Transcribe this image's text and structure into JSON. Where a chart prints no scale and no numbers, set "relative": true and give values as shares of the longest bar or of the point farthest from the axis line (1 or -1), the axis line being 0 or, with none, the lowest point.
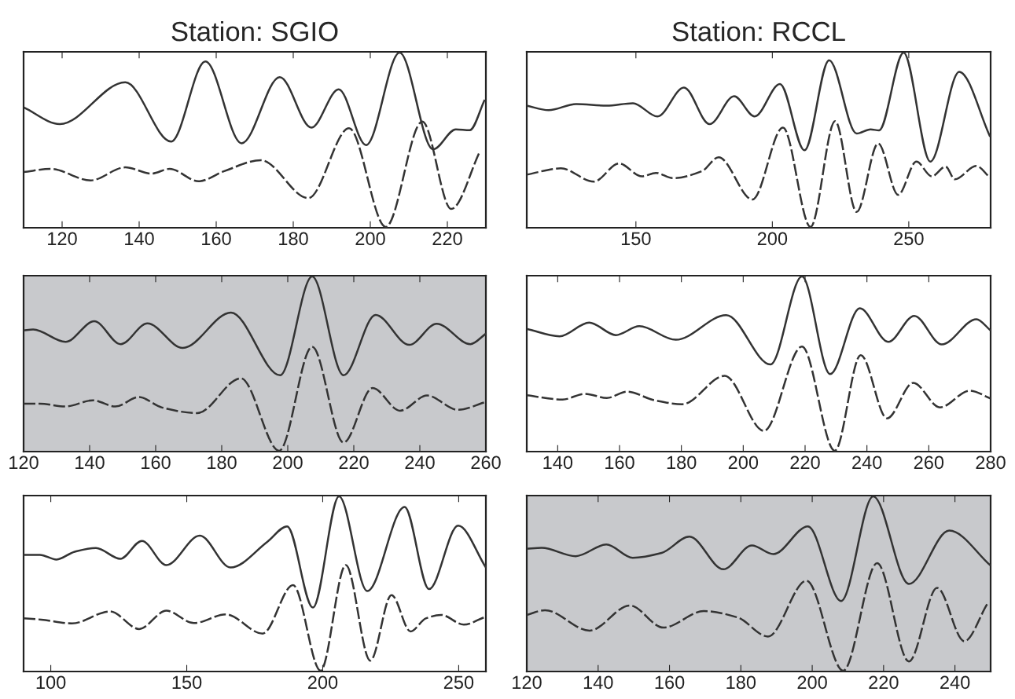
{
  "chart_data": [
    {
      "type": "line",
      "title": "Station: SGIO",
      "relative": true,
      "xlim": [
        110,
        230
      ],
      "xticks": [
        120,
        140,
        160,
        180,
        200,
        220
      ],
      "tick_labels": "x",
      "legend": false,
      "grid": false,
      "marker": "none",
      "series": [
        {
          "color": "#333333",
          "line_style": "solid",
          "x": [
            110.1,
            119.4,
            136.4,
            148.3,
            157.2,
            166.6,
            176.5,
            184.7,
            191.8,
            198.9,
            207.6,
            216.3,
            222.2,
            225.8,
            229.7
          ],
          "values": [
            0.685,
            0.59,
            0.83,
            0.49,
            0.95,
            0.48,
            0.86,
            0.57,
            0.79,
            0.47,
            1.0,
            0.445,
            0.56,
            0.555,
            0.73
          ]
        },
        {
          "color": "#333333",
          "line_style": "dashed",
          "x": [
            110.1,
            117.0,
            127.4,
            136.4,
            143.2,
            147.9,
            155.4,
            162.1,
            171.6,
            183.9,
            194.5,
            204.0,
            213.5,
            221.0,
            228.5
          ],
          "values": [
            0.315,
            0.333,
            0.267,
            0.342,
            0.306,
            0.333,
            0.262,
            0.32,
            0.383,
            0.165,
            0.566,
            0.0,
            0.605,
            0.103,
            0.436
          ]
        }
      ]
    },
    {
      "type": "line",
      "title": "Station: RCCL",
      "relative": true,
      "xlim": [
        110,
        280
      ],
      "xticks": [
        150,
        200,
        250
      ],
      "tick_labels": "x",
      "legend": false,
      "grid": false,
      "marker": "none",
      "series": [
        {
          "color": "#333333",
          "line_style": "solid",
          "x": [
            110,
            118,
            128.1,
            139.3,
            148.9,
            157.9,
            167.6,
            177,
            186,
            193.5,
            202.8,
            211.8,
            220.8,
            230.9,
            236,
            239.1,
            248.1,
            257.9,
            268.5,
            279.8
          ],
          "values": [
            0.696,
            0.67,
            0.705,
            0.696,
            0.71,
            0.634,
            0.8,
            0.59,
            0.75,
            0.634,
            0.82,
            0.44,
            0.957,
            0.536,
            0.56,
            0.554,
            1.0,
            0.375,
            0.89,
            0.518
          ]
        },
        {
          "color": "#333333",
          "line_style": "dashed",
          "x": [
            110,
            122.5,
            134.6,
            143.8,
            152.2,
            157.3,
            163.5,
            174.2,
            180.3,
            192.7,
            203.9,
            214,
            223,
            230.9,
            238.8,
            246.1,
            252.8,
            258.4,
            263.5,
            266.9,
            274.7,
            279.8
          ],
          "values": [
            0.3,
            0.336,
            0.26,
            0.364,
            0.29,
            0.31,
            0.28,
            0.32,
            0.4,
            0.157,
            0.57,
            0.0,
            0.607,
            0.086,
            0.479,
            0.184,
            0.375,
            0.29,
            0.346,
            0.273,
            0.35,
            0.282
          ]
        }
      ]
    },
    {
      "type": "line",
      "relative": true,
      "xlim": [
        120,
        260
      ],
      "xticks": [
        120,
        140,
        160,
        180,
        200,
        220,
        240,
        260
      ],
      "tick_labels": "x",
      "legend": false,
      "grid": false,
      "marker": "none",
      "bands": [
        {
          "axis": "x",
          "from": 120,
          "to": 260,
          "color": "#c8c9cc"
        }
      ],
      "series": [
        {
          "color": "#333333",
          "line_style": "solid",
          "x": [
            120,
            122.9,
            132.7,
            141.4,
            149.4,
            157.5,
            168.2,
            182.8,
            197.7,
            207.4,
            216.9,
            226.6,
            236.8,
            245.1,
            255.3,
            260
          ],
          "values": [
            0.69,
            0.696,
            0.625,
            0.743,
            0.612,
            0.731,
            0.59,
            0.793,
            0.433,
            1.0,
            0.433,
            0.78,
            0.608,
            0.729,
            0.612,
            0.672
          ]
        },
        {
          "color": "#333333",
          "line_style": "dashed",
          "x": [
            120,
            124.9,
            132.7,
            141,
            147.8,
            154.9,
            161.9,
            172.6,
            185.8,
            197.4,
            207.4,
            216.9,
            225.7,
            234,
            242.2,
            251.5,
            260
          ],
          "values": [
            0.27,
            0.27,
            0.254,
            0.289,
            0.254,
            0.308,
            0.248,
            0.216,
            0.416,
            0.0,
            0.597,
            0.047,
            0.36,
            0.23,
            0.317,
            0.235,
            0.28
          ]
        }
      ]
    },
    {
      "type": "line",
      "relative": true,
      "xlim": [
        130,
        280
      ],
      "xticks": [
        140,
        160,
        180,
        200,
        220,
        240,
        260,
        280
      ],
      "tick_labels": "x",
      "legend": false,
      "grid": false,
      "marker": "none",
      "series": [
        {
          "color": "#333333",
          "line_style": "solid",
          "x": [
            130,
            140.6,
            150.2,
            158.8,
            166.4,
            178.2,
            194.5,
            208.8,
            219,
            228.1,
            237.7,
            246.9,
            255.3,
            264.2,
            275.4,
            280
          ],
          "values": [
            0.7,
            0.657,
            0.736,
            0.664,
            0.715,
            0.637,
            0.778,
            0.495,
            1.0,
            0.44,
            0.818,
            0.625,
            0.774,
            0.61,
            0.755,
            0.69
          ]
        },
        {
          "color": "#333333",
          "line_style": "dashed",
          "x": [
            130,
            141.6,
            148.8,
            155.9,
            162.5,
            171.2,
            180.3,
            194,
            206.7,
            219,
            229.6,
            238,
            246.5,
            255,
            263.6,
            273.3,
            280
          ],
          "values": [
            0.318,
            0.294,
            0.327,
            0.303,
            0.339,
            0.29,
            0.267,
            0.43,
            0.114,
            0.598,
            0.0,
            0.549,
            0.186,
            0.39,
            0.249,
            0.345,
            0.3
          ]
        }
      ]
    },
    {
      "type": "line",
      "relative": true,
      "xlim": [
        90,
        260
      ],
      "xticks": [
        100,
        150,
        200,
        250
      ],
      "tick_labels": "x",
      "legend": false,
      "grid": false,
      "marker": "none",
      "series": [
        {
          "color": "#333333",
          "line_style": "solid",
          "x": [
            90,
            96,
            102.1,
            108.8,
            116.6,
            125.6,
            133.5,
            142.5,
            154.8,
            166.1,
            179.6,
            186.9,
            196.4,
            206,
            216.4,
            230.1,
            239.1,
            249.8,
            260
          ],
          "values": [
            0.665,
            0.665,
            0.638,
            0.683,
            0.704,
            0.642,
            0.745,
            0.606,
            0.775,
            0.592,
            0.739,
            0.828,
            0.362,
            1.0,
            0.457,
            0.94,
            0.468,
            0.832,
            0.592
          ]
        },
        {
          "color": "#333333",
          "line_style": "dashed",
          "x": [
            90,
            96.5,
            107.8,
            121.8,
            132.5,
            142.5,
            152.6,
            164.4,
            177.9,
            189.1,
            199.2,
            208.5,
            217.5,
            225.3,
            232.3,
            237.9,
            243.5,
            251.9,
            259.2
          ],
          "values": [
            0.3,
            0.293,
            0.271,
            0.34,
            0.239,
            0.344,
            0.273,
            0.323,
            0.213,
            0.491,
            0.0,
            0.606,
            0.057,
            0.434,
            0.225,
            0.3,
            0.32,
            0.264,
            0.305
          ]
        }
      ]
    },
    {
      "type": "line",
      "relative": true,
      "xlim": [
        120,
        250
      ],
      "xticks": [
        120,
        140,
        160,
        180,
        200,
        220,
        240
      ],
      "tick_labels": "x",
      "legend": false,
      "grid": false,
      "marker": "none",
      "bands": [
        {
          "axis": "x",
          "from": 120,
          "to": 250,
          "color": "#c8c9cc"
        }
      ],
      "series": [
        {
          "color": "#333333",
          "line_style": "solid",
          "x": [
            120,
            124.2,
            133.7,
            142.3,
            149.7,
            157.8,
            165.6,
            175.1,
            183.1,
            189.1,
            198.8,
            208.1,
            217.1,
            227.1,
            238.4,
            250
          ],
          "values": [
            0.7,
            0.705,
            0.657,
            0.724,
            0.648,
            0.676,
            0.769,
            0.582,
            0.719,
            0.669,
            0.828,
            0.4,
            1.0,
            0.498,
            0.804,
            0.603
          ]
        },
        {
          "color": "#333333",
          "line_style": "dashed",
          "x": [
            120,
            125.1,
            137.6,
            148.9,
            158.3,
            169.6,
            179,
            187.6,
            198.4,
            208.7,
            218.2,
            227.1,
            235,
            242.6,
            249
          ],
          "values": [
            0.32,
            0.347,
            0.23,
            0.374,
            0.247,
            0.342,
            0.306,
            0.196,
            0.516,
            0.0,
            0.617,
            0.053,
            0.475,
            0.169,
            0.381
          ]
        }
      ]
    }
  ]
}
